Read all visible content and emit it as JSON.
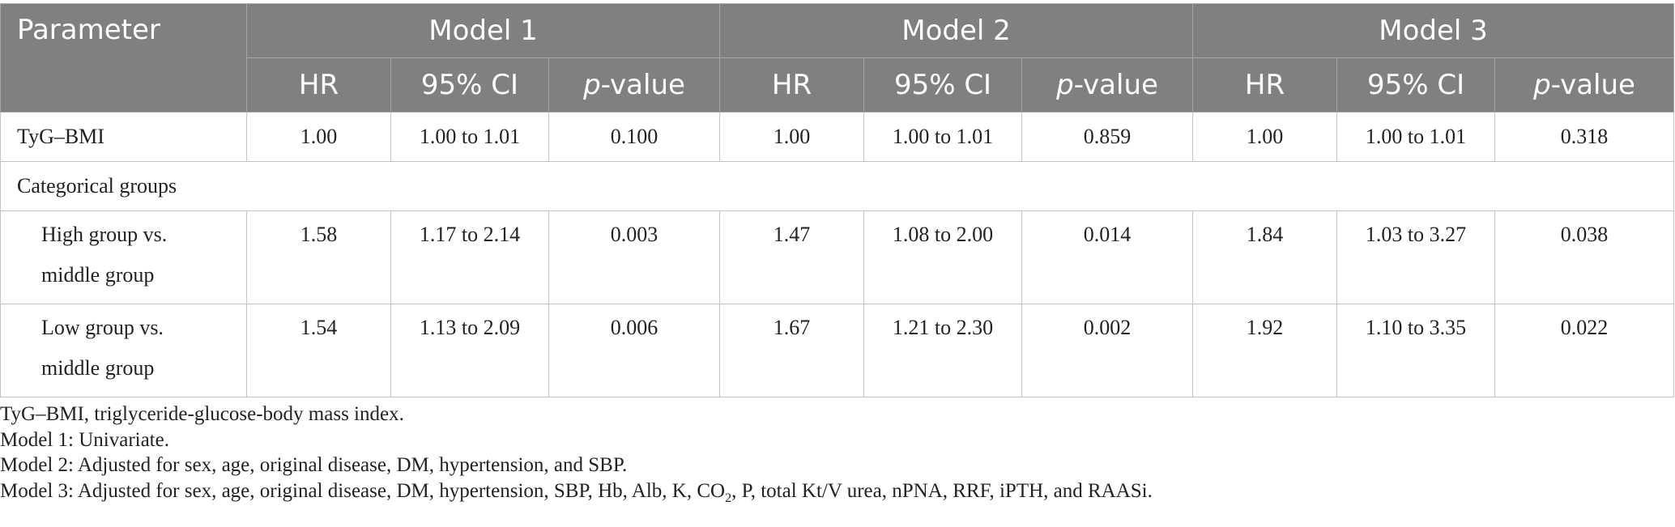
{
  "header": {
    "parameter": "Parameter",
    "models": [
      "Model 1",
      "Model 2",
      "Model 3"
    ],
    "hr": "HR",
    "ci": "95% CI",
    "p_italic": "p",
    "p_suffix": "-value"
  },
  "rows": {
    "tyg": {
      "label": "TyG–BMI",
      "m1": [
        "1.00",
        "1.00 to 1.01",
        "0.100"
      ],
      "m2": [
        "1.00",
        "1.00 to 1.01",
        "0.859"
      ],
      "m3": [
        "1.00",
        "1.00 to 1.01",
        "0.318"
      ]
    },
    "categorical": {
      "label": "Categorical groups"
    },
    "high": {
      "label": "High group vs. middle group",
      "m1": [
        "1.58",
        "1.17 to 2.14",
        "0.003"
      ],
      "m2": [
        "1.47",
        "1.08 to 2.00",
        "0.014"
      ],
      "m3": [
        "1.84",
        "1.03 to 3.27",
        "0.038"
      ]
    },
    "low": {
      "label": "Low group vs. middle group",
      "m1": [
        "1.54",
        "1.13 to 2.09",
        "0.006"
      ],
      "m2": [
        "1.67",
        "1.21 to 2.30",
        "0.002"
      ],
      "m3": [
        "1.92",
        "1.10 to 3.35",
        "0.022"
      ]
    }
  },
  "footnotes": {
    "abbrev": "TyG–BMI, triglyceride-glucose-body mass index.",
    "model1": "Model 1: Univariate.",
    "model2": "Model 2: Adjusted for sex, age, original disease, DM, hypertension, and SBP.",
    "model3_a": "Model 3: Adjusted for sex, age, original disease, DM, hypertension, SBP, Hb, Alb, K, CO",
    "model3_sub": "2",
    "model3_b": ", P, total Kt/V urea, nPNA, RRF, iPTH, and RAASi."
  }
}
